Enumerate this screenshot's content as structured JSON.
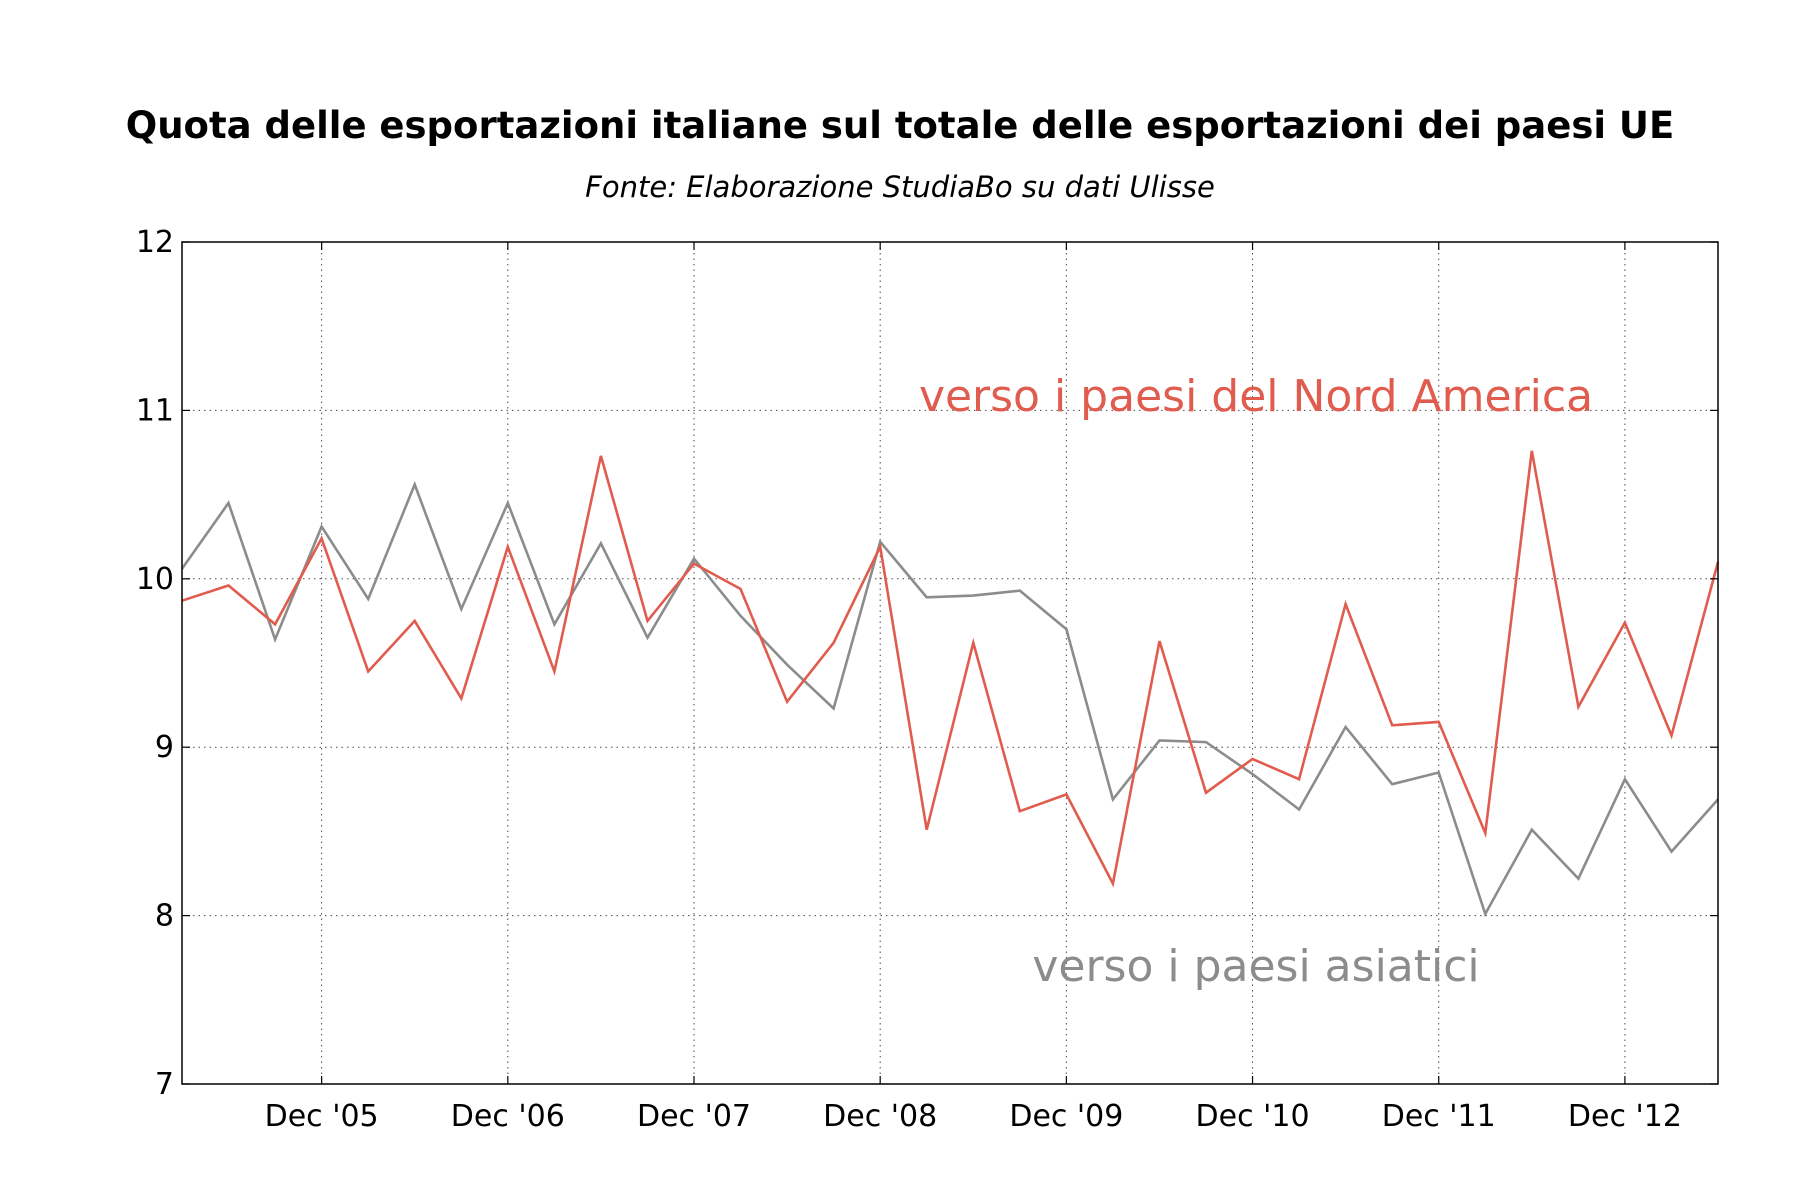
{
  "chart_data": {
    "type": "line",
    "title": "Quota delle esportazioni italiane sul totale delle esportazioni dei paesi UE",
    "subtitle": "Fonte: Elaborazione StudiaBo su dati Ulisse",
    "xlabel": "",
    "ylabel": "",
    "ylim": [
      7,
      12
    ],
    "yticks": [
      "7",
      "8",
      "9",
      "10",
      "11",
      "12"
    ],
    "xticks": [
      "Dec '05",
      "Dec '06",
      "Dec '07",
      "Dec '08",
      "Dec '09",
      "Dec '10",
      "Dec '11",
      "Dec '12"
    ],
    "grid": true,
    "legend": "inline annotations",
    "x": [
      "2005-03",
      "2005-06",
      "2005-09",
      "2005-12",
      "2006-03",
      "2006-06",
      "2006-09",
      "2006-12",
      "2007-03",
      "2007-06",
      "2007-09",
      "2007-12",
      "2008-03",
      "2008-06",
      "2008-09",
      "2008-12",
      "2009-03",
      "2009-06",
      "2009-09",
      "2009-12",
      "2010-03",
      "2010-06",
      "2010-09",
      "2010-12",
      "2011-03",
      "2011-06",
      "2011-09",
      "2011-12",
      "2012-03",
      "2012-06",
      "2012-09",
      "2012-12",
      "2013-03",
      "2013-06"
    ],
    "series": [
      {
        "name": "verso i paesi del Nord America",
        "color": "#e05c4e",
        "values": [
          9.87,
          9.96,
          9.73,
          10.24,
          9.45,
          9.75,
          9.29,
          10.19,
          9.45,
          10.73,
          9.75,
          10.09,
          9.94,
          9.27,
          9.62,
          10.19,
          8.51,
          9.62,
          8.62,
          8.72,
          8.19,
          9.63,
          8.73,
          8.93,
          8.81,
          9.85,
          9.13,
          9.15,
          8.49,
          10.76,
          9.24,
          9.74,
          9.07,
          10.1
        ]
      },
      {
        "name": "verso i paesi asiatici",
        "color": "#8c8c8c",
        "values": [
          10.06,
          10.45,
          9.64,
          10.31,
          9.88,
          10.56,
          9.82,
          10.45,
          9.73,
          10.21,
          9.65,
          10.12,
          9.78,
          9.49,
          9.23,
          10.22,
          9.89,
          9.9,
          9.93,
          9.7,
          8.69,
          9.04,
          9.03,
          8.84,
          8.63,
          9.12,
          8.78,
          8.85,
          8.01,
          8.51,
          8.22,
          8.81,
          8.38,
          8.69
        ]
      }
    ]
  }
}
